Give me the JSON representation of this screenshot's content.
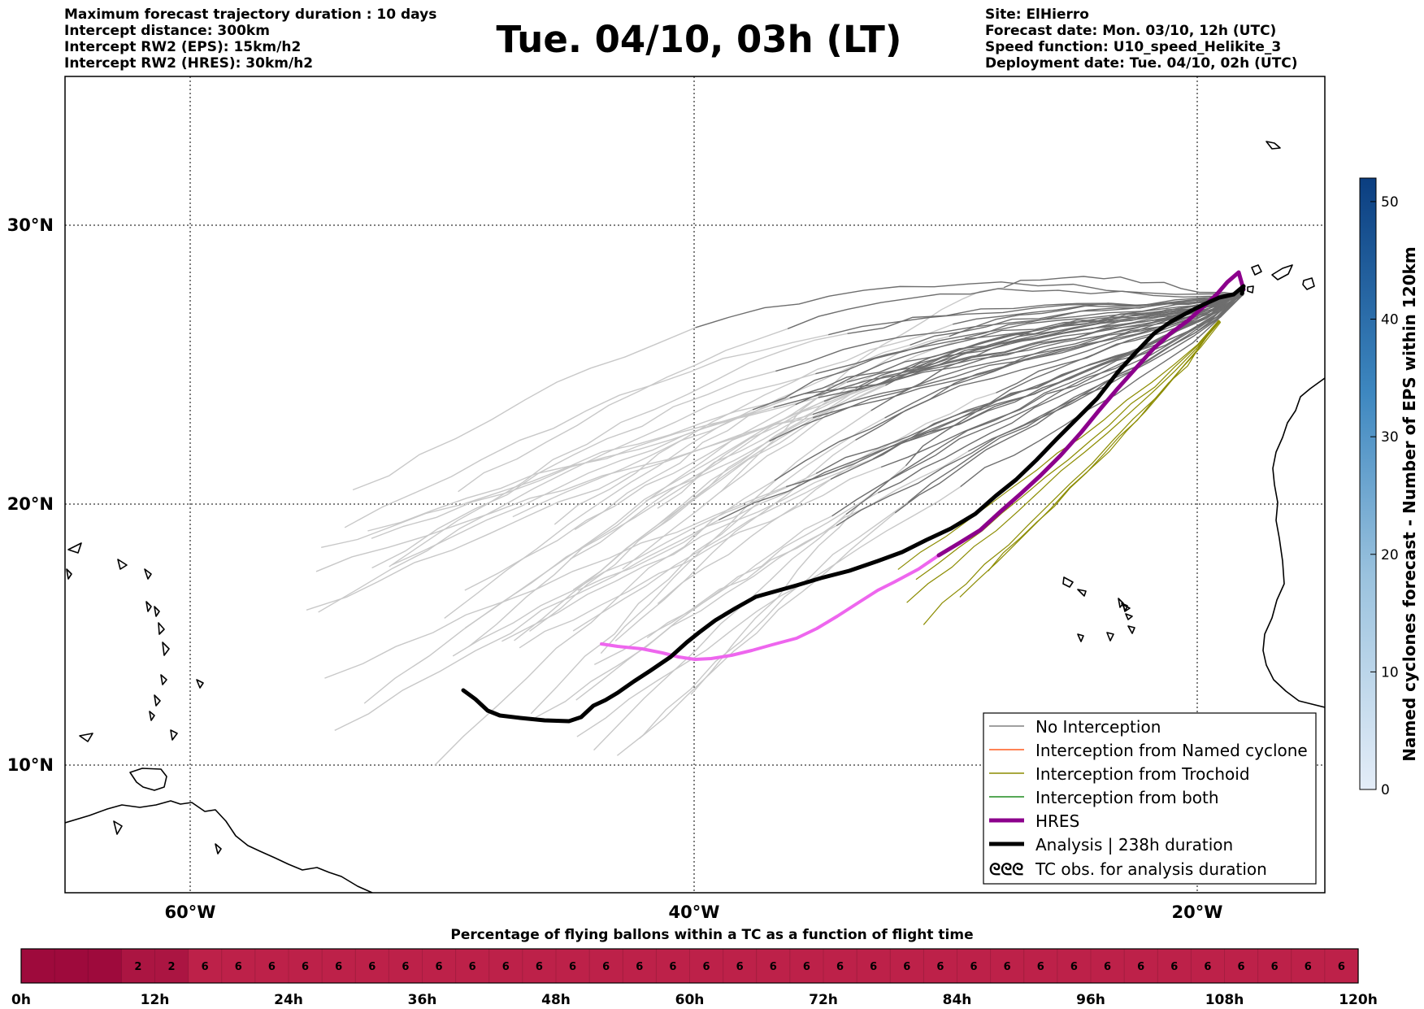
{
  "header": {
    "left_lines": [
      "Maximum forecast trajectory duration : 10 days",
      "Intercept distance: 300km",
      "Intercept RW2 (EPS):  15km/h2",
      "Intercept RW2 (HRES): 30km/h2"
    ],
    "title": "Tue. 04/10, 03h (LT)",
    "right_lines": [
      "Site: ElHierro",
      "Forecast date: Mon. 03/10, 12h (UTC)",
      "Speed function: U10_speed_Helikite_3",
      "Deployment date: Tue. 04/10, 02h (UTC)"
    ]
  },
  "map": {
    "lat_labels": [
      "30°N",
      "20°N",
      "10°N"
    ],
    "lon_labels": [
      "60°W",
      "40°W",
      "20°W"
    ],
    "colors": {
      "no_interception": "#6e6e6e",
      "no_interception_faded": "#c8c8c8",
      "named_cyclone": "#ff5a1e",
      "trochoid": "#8c8c00",
      "both": "#1e8c1e",
      "hres": "#8c008c",
      "hres_faded": "#ee66ee",
      "analysis": "#000000",
      "coastline": "#000000"
    }
  },
  "legend": {
    "items": [
      {
        "label": "No Interception",
        "style": "thin",
        "color": "#808080"
      },
      {
        "label": "Interception from Named cyclone",
        "style": "thin",
        "color": "#ff5a1e"
      },
      {
        "label": "Interception from Trochoid",
        "style": "thin",
        "color": "#8c8c00"
      },
      {
        "label": "Interception from both",
        "style": "thin",
        "color": "#1e8c1e"
      },
      {
        "label": "HRES",
        "style": "thick",
        "color": "#8c008c"
      },
      {
        "label": "Analysis | 238h duration",
        "style": "thick",
        "color": "#000000"
      },
      {
        "label": "TC obs. for analysis duration",
        "style": "symbol",
        "color": "#000000",
        "symbol": "ᘓᘓᘓ"
      }
    ]
  },
  "colorbar": {
    "title": "Named cyclones forecast - Number of EPS within 120km",
    "ticks": [
      "0",
      "10",
      "20",
      "30",
      "40",
      "50"
    ],
    "range": [
      0,
      52
    ],
    "color_low": "#e4edf8",
    "color_high": "#0b3e80"
  },
  "timeline": {
    "title": "Percentage of flying ballons within a TC as a function of flight time",
    "values": [
      "",
      "",
      "",
      "2",
      "2",
      "6",
      "6",
      "6",
      "6",
      "6",
      "6",
      "6",
      "6",
      "6",
      "6",
      "6",
      "6",
      "6",
      "6",
      "6",
      "6",
      "6",
      "6",
      "6",
      "6",
      "6",
      "6",
      "6",
      "6",
      "6",
      "6",
      "6",
      "6",
      "6",
      "6",
      "6",
      "6",
      "6",
      "6",
      "6"
    ],
    "hour_labels": [
      "0h",
      "12h",
      "24h",
      "36h",
      "48h",
      "60h",
      "72h",
      "84h",
      "96h",
      "108h",
      "120h"
    ],
    "colors": {
      "empty": "#9e0a3c",
      "low": "#ab1542",
      "mid": "#bd2149"
    }
  }
}
